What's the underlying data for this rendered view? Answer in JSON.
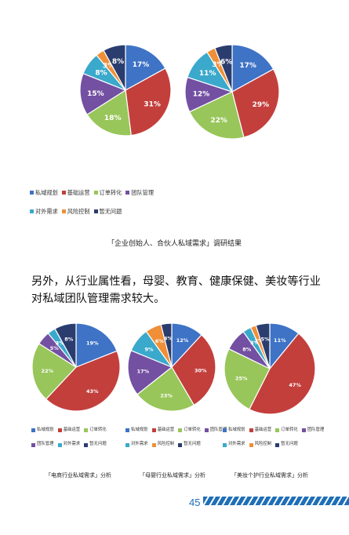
{
  "colors": {
    "私域规划": "#3e73c6",
    "基础运营": "#c33f3c",
    "订单转化": "#98c65a",
    "团队管理": "#7350a2",
    "对外需求": "#3aa9cc",
    "风险控制": "#ef8f38",
    "暂无问题": "#2b3d6e"
  },
  "top_charts": [
    {
      "values": [
        17,
        31,
        18,
        15,
        8,
        3,
        8
      ]
    },
    {
      "values": [
        17,
        29,
        22,
        12,
        11,
        3,
        6
      ]
    }
  ],
  "top_legend": {
    "rows": [
      [
        "私域规划",
        "基础运营",
        "订单转化",
        "团队管理"
      ],
      [
        "对外需求",
        "风险控制",
        "暂无问题"
      ]
    ]
  },
  "top_caption": "「企业创始人、合伙人私域需求」调研结果",
  "paragraph": "另外，从行业属性看，母婴、教育、健康保健、美妆等行业对私域团队管理需求较大。",
  "bottom_charts": [
    {
      "values": [
        19,
        43,
        22,
        5,
        3,
        8
      ],
      "labels": [
        "私域规划",
        "基础运营",
        "订单转化",
        "团队管理",
        "对外需求",
        "暂无问题"
      ],
      "legend_rows": [
        [
          "私域规划",
          "基础运营",
          "订单转化"
        ],
        [
          "团队管理",
          "对外需求",
          "暂无问题"
        ]
      ],
      "caption": "「电商行业私域需求」分析"
    },
    {
      "values": [
        12,
        30,
        23,
        17,
        9,
        6,
        4
      ],
      "labels": [
        "私域规划",
        "基础运营",
        "订单转化",
        "团队管理",
        "对外需求",
        "风险控制",
        "暂无问题"
      ],
      "legend_rows": [
        [
          "私域规划",
          "基础运营",
          "订单转化",
          "团队管理"
        ],
        [
          "对外需求",
          "风险控制",
          "暂无问题"
        ]
      ],
      "caption": "「母婴行业私域需求」分析"
    },
    {
      "values": [
        11,
        47,
        25,
        8,
        3,
        2,
        5
      ],
      "labels": [
        "私域规划",
        "基础运营",
        "订单转化",
        "团队管理",
        "对外需求",
        "风险控制",
        "暂无问题"
      ],
      "legend_rows": [
        [
          "私域规划",
          "基础运营",
          "订单转化",
          "团队管理"
        ],
        [
          "对外需求",
          "风险控制",
          "暂无问题"
        ]
      ],
      "caption": "「美妆个护行业私域需求」分析"
    }
  ],
  "page_number": "45"
}
